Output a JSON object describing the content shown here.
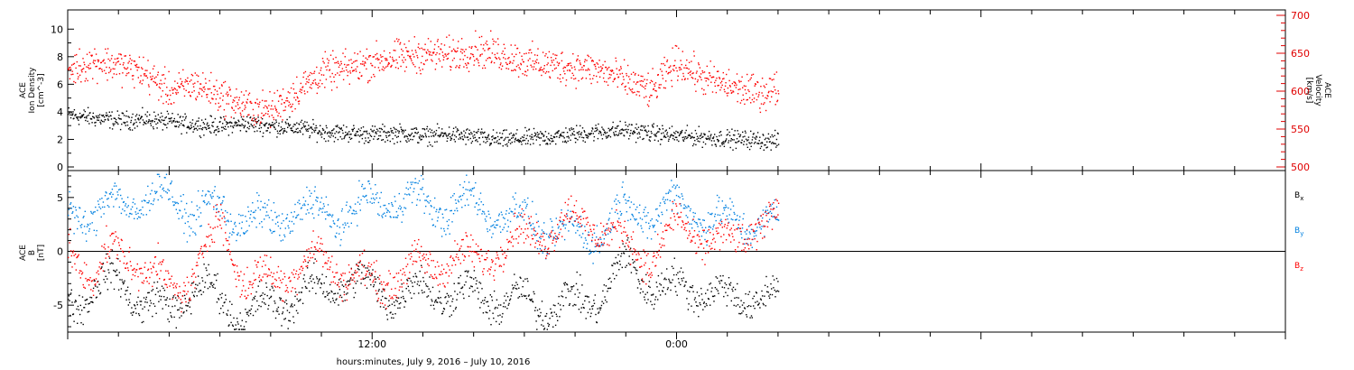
{
  "chart_data": [
    {
      "type": "scatter",
      "panel": "top",
      "ylabel_left": [
        "ACE",
        "Ion Density",
        "[cm^-3]"
      ],
      "ylabel_right": [
        "ACE",
        "Velocity",
        "[km/s]"
      ],
      "ylim_left": [
        0,
        11
      ],
      "ylim_right": [
        500,
        700
      ],
      "yticks_left": [
        "0",
        "2",
        "4",
        "6",
        "8",
        "10"
      ],
      "yticks_right": [
        "500",
        "550",
        "600",
        "650",
        "700"
      ],
      "colors": {
        "density": "#000000",
        "velocity": "#ff0000"
      },
      "x_hours": [
        0,
        1,
        2,
        3,
        4,
        5,
        6,
        7,
        8,
        9,
        10,
        11,
        12,
        13,
        14,
        15,
        16,
        17,
        18,
        19,
        20,
        21,
        22,
        23,
        24,
        25,
        26,
        27,
        28
      ],
      "series": [
        {
          "key": "density",
          "axis": "left",
          "color": "#000000",
          "values": [
            3.8,
            3.6,
            3.4,
            3.5,
            3.3,
            3.1,
            3.0,
            3.2,
            3.0,
            2.9,
            2.6,
            2.5,
            2.4,
            2.5,
            2.3,
            2.4,
            2.2,
            2.0,
            2.1,
            2.2,
            2.4,
            2.6,
            2.7,
            2.5,
            2.3,
            2.2,
            2.1,
            2.0,
            1.9
          ]
        },
        {
          "key": "velocity",
          "axis": "right",
          "color": "#ff0000",
          "values": [
            628,
            640,
            635,
            625,
            600,
            610,
            595,
            580,
            575,
            600,
            625,
            630,
            640,
            645,
            650,
            648,
            655,
            650,
            640,
            635,
            632,
            628,
            614,
            600,
            640,
            618,
            608,
            598,
            604
          ]
        }
      ]
    },
    {
      "type": "scatter",
      "panel": "bottom",
      "ylabel": [
        "ACE",
        "B",
        "[nT]"
      ],
      "ylim": [
        -7.5,
        7.5
      ],
      "yticks": [
        "-5",
        "0",
        "5"
      ],
      "legend": [
        "B_x",
        "B_y",
        "B_z"
      ],
      "legend_placement": "right",
      "zero_line": true,
      "x_hours": [
        0,
        1,
        2,
        3,
        4,
        5,
        6,
        7,
        8,
        9,
        10,
        11,
        12,
        13,
        14,
        15,
        16,
        17,
        18,
        19,
        20,
        21,
        22,
        23,
        24,
        25,
        26,
        27,
        28
      ],
      "series": [
        {
          "name": "B_x",
          "color": "#000000",
          "values": [
            -4.5,
            -3.5,
            -2.5,
            -4.8,
            -5.5,
            -3.0,
            -4.5,
            -6.0,
            -5.0,
            -4.0,
            -3.5,
            -2.5,
            -3.5,
            -4.0,
            -3.5,
            -3.8,
            -4.0,
            -4.5,
            -4.6,
            -5.0,
            -4.8,
            -4.0,
            -1.0,
            -3.0,
            -3.5,
            -3.2,
            -4.5,
            -4.0,
            -4.3
          ]
        },
        {
          "name": "B_y",
          "color": "#0080e0",
          "values": [
            4.5,
            3.0,
            5.0,
            4.5,
            5.5,
            3.5,
            4.0,
            3.0,
            2.5,
            4.0,
            3.5,
            3.5,
            4.5,
            5.0,
            4.5,
            4.0,
            4.5,
            3.5,
            3.0,
            2.0,
            1.5,
            2.0,
            4.0,
            3.5,
            4.5,
            3.5,
            2.5,
            3.0,
            2.5
          ]
        },
        {
          "name": "B_z",
          "color": "#ff0000",
          "values": [
            1.0,
            -2.5,
            0.5,
            -1.5,
            -3.5,
            -2.0,
            3.0,
            -3.0,
            -2.5,
            -1.5,
            -0.5,
            -2.0,
            -3.0,
            -2.0,
            -1.5,
            -0.5,
            -1.0,
            0.5,
            1.5,
            2.0,
            3.0,
            2.5,
            0.5,
            -0.5,
            2.5,
            1.5,
            0.5,
            2.5,
            3.0
          ]
        }
      ]
    }
  ],
  "xaxis": {
    "tick_labels": [
      "12:00",
      "0:00"
    ],
    "xlabel": "hours:minutes,  July  9, 2016 – July 10, 2016",
    "range_hours": [
      0,
      48
    ],
    "data_end_hours": 28
  }
}
